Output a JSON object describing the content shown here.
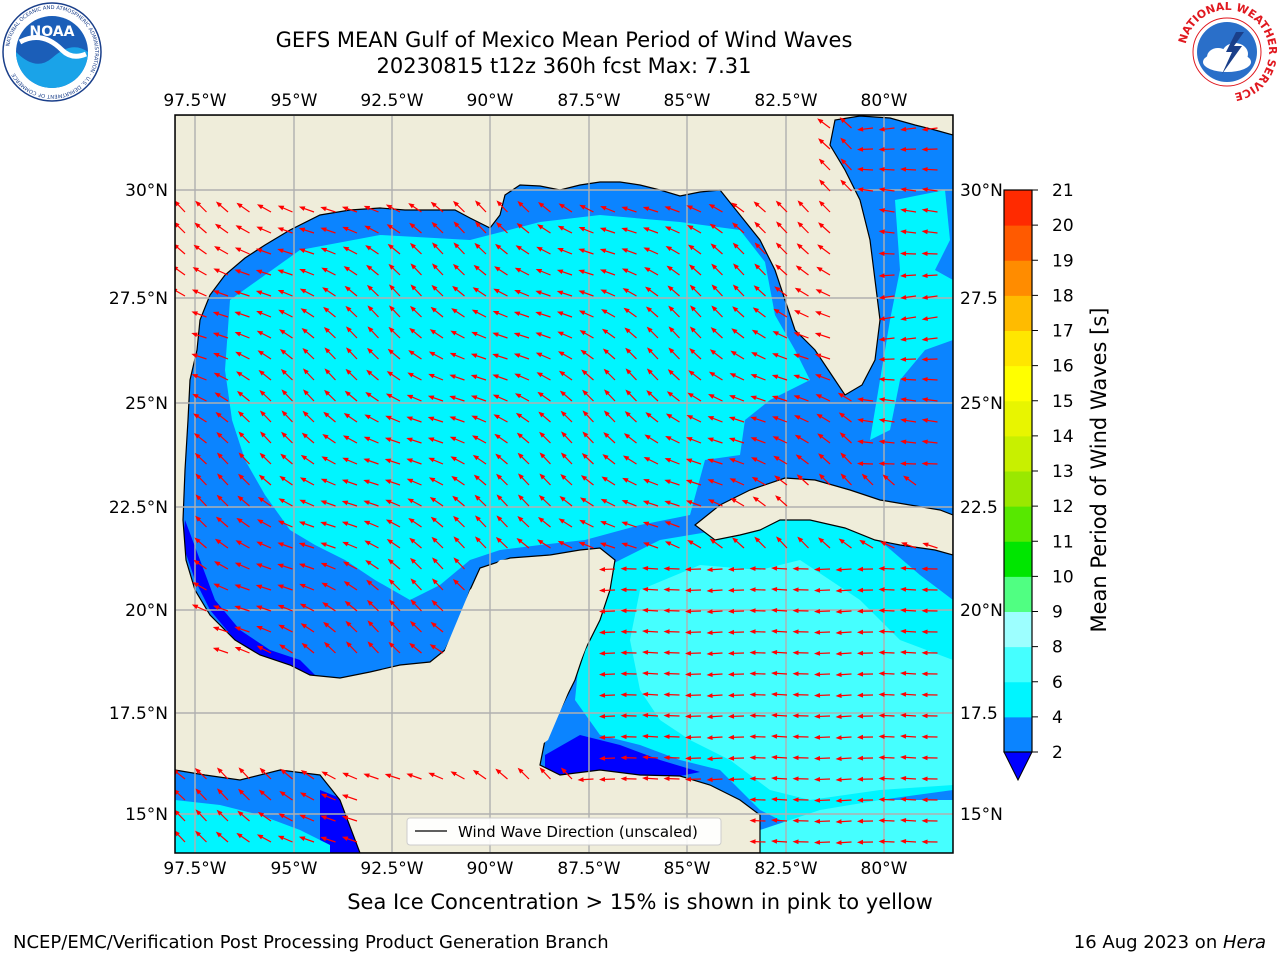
{
  "header": {
    "title_line1": "GEFS MEAN Gulf of Mexico Mean Period of Wind Waves",
    "title_line2": "20230815 t12z 360h fcst   Max: 7.31"
  },
  "logos": {
    "noaa": {
      "text": "NOAA",
      "ring_text": "NATIONAL OCEANIC AND ATMOSPHERIC ADMINISTRATION · U.S. DEPARTMENT OF COMMERCE",
      "icon": "noaa-logo"
    },
    "nws": {
      "ring_text": "NATIONAL WEATHER SERVICE",
      "icon": "nws-logo"
    }
  },
  "map": {
    "lon_labels": [
      "97.5°W",
      "95°W",
      "92.5°W",
      "90°W",
      "87.5°W",
      "85°W",
      "82.5°W",
      "80°W"
    ],
    "lat_labels_left": [
      "30°N",
      "27.5°N",
      "25°N",
      "22.5°N",
      "20°N",
      "17.5°N",
      "15°N"
    ],
    "lat_labels_right": [
      "30°N",
      "27.5",
      "25°N",
      "22.5",
      "20°N",
      "17.5",
      "15°N"
    ],
    "legend_label": "Wind Wave Direction (unscaled)",
    "colors": {
      "land": "#efedda",
      "coast": "#000000",
      "grid": "#b0b0b0",
      "arrow": "#ff0000"
    }
  },
  "colorbar": {
    "title": "Mean Period of Wind Waves [s]",
    "ticks": [
      "2",
      "4",
      "6",
      "8",
      "9",
      "10",
      "11",
      "12",
      "13",
      "14",
      "15",
      "16",
      "17",
      "18",
      "19",
      "20",
      "21"
    ],
    "colors": [
      "#0b84ff",
      "#00f5ff",
      "#45ffff",
      "#9dffff",
      "#50ff82",
      "#00e600",
      "#57e800",
      "#9ae800",
      "#c8f000",
      "#e8f500",
      "#ffff00",
      "#ffe600",
      "#ffbb00",
      "#ff8c00",
      "#ff5a00",
      "#ff2a00"
    ],
    "under_color": "#0000ff"
  },
  "footer": {
    "notice": "Sea Ice Concentration > 15% is shown in pink to yellow",
    "left": "NCEP/EMC/Verification Post Processing Product Generation Branch",
    "right_date": "16 Aug 2023 on ",
    "right_host": "Hera"
  }
}
